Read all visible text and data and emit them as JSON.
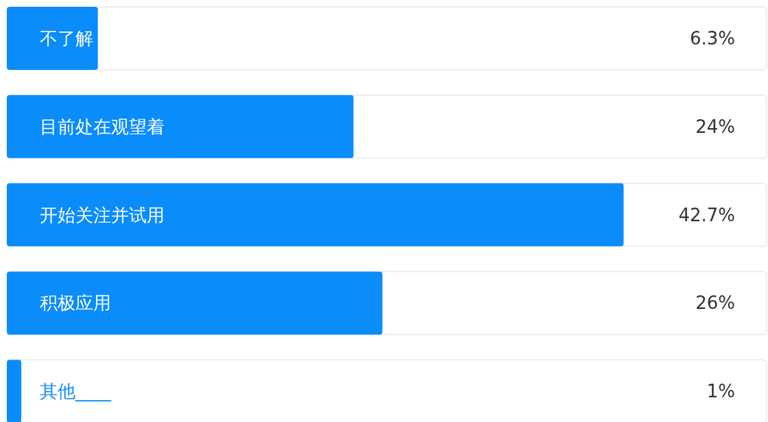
{
  "chart_data": {
    "type": "bar",
    "orientation": "horizontal",
    "categories": [
      "不了解",
      "目前处在观望着",
      "开始关注并试用",
      "积极应用",
      "其他____"
    ],
    "values": [
      6.3,
      24,
      42.7,
      26,
      1
    ],
    "value_labels": [
      "6.3%",
      "24%",
      "42.7%",
      "26%",
      "1%"
    ],
    "color": "#0a8cfa",
    "xlim": [
      0,
      52.6
    ]
  }
}
